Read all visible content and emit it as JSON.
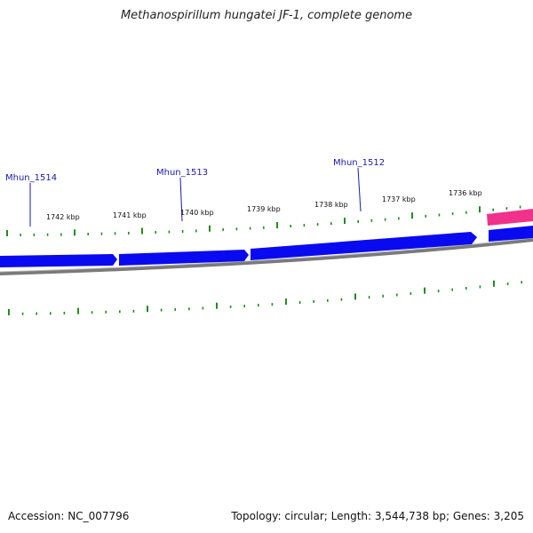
{
  "title": "Methanospirillum hungatei JF-1, complete genome",
  "footer": {
    "accession": "Accession: NC_007796",
    "summary": "Topology: circular; Length: 3,544,738 bp; Genes: 3,205"
  },
  "colors": {
    "forward_gene": "#0a0af0",
    "reverse_gene": "#f0328c",
    "backbone": "#7a7a7a",
    "ticks": "#1f8c1f",
    "gene_label": "#1a1aa8"
  },
  "kbp_labels": [
    "1742 kbp",
    "1741 kbp",
    "1740 kbp",
    "1739 kbp",
    "1738 kbp",
    "1737 kbp",
    "1736 kbp"
  ],
  "gene_labels": [
    "Mhun_1514",
    "Mhun_1513",
    "Mhun_1512"
  ]
}
